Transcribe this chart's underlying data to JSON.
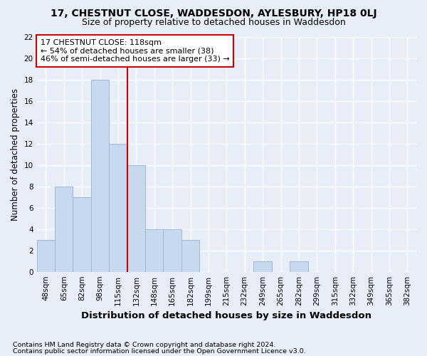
{
  "title1": "17, CHESTNUT CLOSE, WADDESDON, AYLESBURY, HP18 0LJ",
  "title2": "Size of property relative to detached houses in Waddesdon",
  "xlabel": "Distribution of detached houses by size in Waddesdon",
  "ylabel": "Number of detached properties",
  "footnote1": "Contains HM Land Registry data © Crown copyright and database right 2024.",
  "footnote2": "Contains public sector information licensed under the Open Government Licence v3.0.",
  "categories": [
    "48sqm",
    "65sqm",
    "82sqm",
    "98sqm",
    "115sqm",
    "132sqm",
    "148sqm",
    "165sqm",
    "182sqm",
    "199sqm",
    "215sqm",
    "232sqm",
    "249sqm",
    "265sqm",
    "282sqm",
    "299sqm",
    "315sqm",
    "332sqm",
    "349sqm",
    "365sqm",
    "382sqm"
  ],
  "values": [
    3,
    8,
    7,
    18,
    12,
    10,
    4,
    4,
    3,
    0,
    0,
    0,
    1,
    0,
    1,
    0,
    0,
    0,
    0,
    0,
    0
  ],
  "bar_color": "#c8d8ee",
  "bar_edge_color": "#9ab8d8",
  "red_line_x": 4.5,
  "annotation_title": "17 CHESTNUT CLOSE: 118sqm",
  "annotation_line1": "← 54% of detached houses are smaller (38)",
  "annotation_line2": "46% of semi-detached houses are larger (33) →",
  "ylim": [
    0,
    22
  ],
  "yticks": [
    0,
    2,
    4,
    6,
    8,
    10,
    12,
    14,
    16,
    18,
    20,
    22
  ],
  "background_color": "#e8eef8",
  "grid_color": "#ffffff",
  "annotation_box_color": "#ffffff",
  "annotation_box_edge": "#cc0000",
  "red_line_color": "#cc0000",
  "title1_fontsize": 10,
  "title2_fontsize": 9,
  "xlabel_fontsize": 9.5,
  "ylabel_fontsize": 8.5,
  "footnote_fontsize": 6.8,
  "tick_fontsize": 7.5,
  "annot_fontsize": 8
}
